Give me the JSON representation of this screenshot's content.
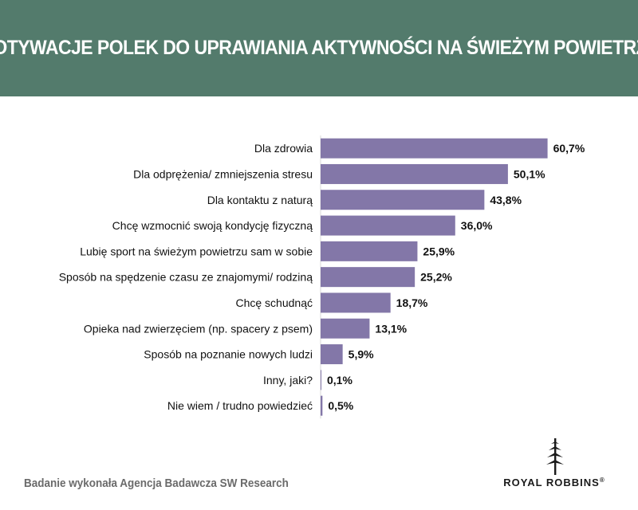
{
  "header": {
    "title": "MOTYWACJE POLEK DO UPRAWIANIA AKTYWNOŚCI NA ŚWIEŻYM POWIETRZU",
    "background": "#537b6c"
  },
  "chart_data": {
    "type": "bar",
    "orientation": "horizontal",
    "categories": [
      "Dla zdrowia",
      "Dla odprężenia/ zmniejszenia stresu",
      "Dla kontaktu z naturą",
      "Chcę wzmocnić swoją kondycję fizyczną",
      "Lubię sport na świeżym powietrzu sam w sobie",
      "Sposób na spędzenie czasu ze znajomymi/ rodziną",
      "Chcę schudnąć",
      "Opieka nad zwierzęciem (np. spacery z psem)",
      "Sposób na poznanie nowych ludzi",
      "Inny, jaki?",
      "Nie wiem / trudno powiedzieć"
    ],
    "values": [
      60.7,
      50.1,
      43.8,
      36.0,
      25.9,
      25.2,
      18.7,
      13.1,
      5.9,
      0.1,
      0.5
    ],
    "value_labels": [
      "60,7%",
      "50,1%",
      "43,8%",
      "36,0%",
      "25,9%",
      "25,2%",
      "18,7%",
      "13,1%",
      "5,9%",
      "0,1%",
      "0,5%"
    ],
    "xlim": [
      0,
      61
    ],
    "bar_color": "#8377a8",
    "grid": false,
    "legend": "none"
  },
  "footer": {
    "source": "Badanie wykonała Agencja Badawcza SW Research",
    "brand": "ROYAL ROBBINS",
    "brand_mark": "®",
    "logo_icon": "tree-icon"
  }
}
